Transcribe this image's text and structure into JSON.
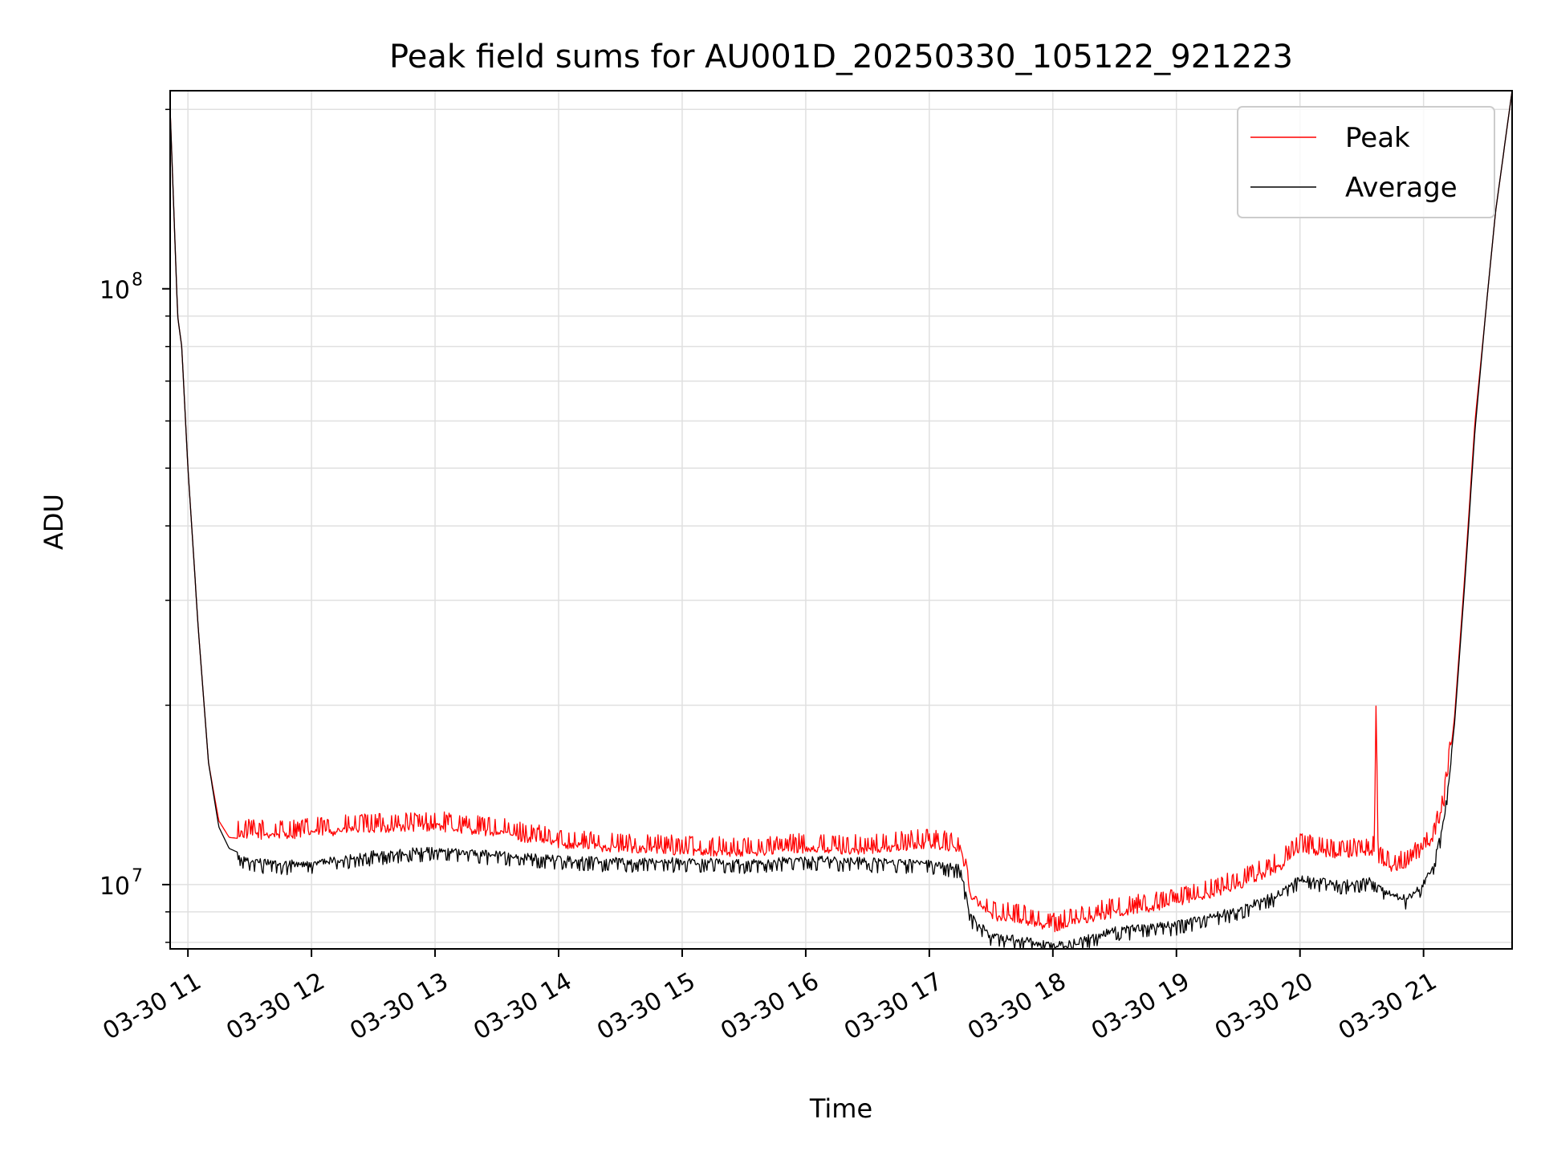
{
  "chart_data": {
    "type": "line",
    "title": "Peak field sums for AU001D_20250330_105122_921223",
    "xlabel": "Time",
    "ylabel": "ADU",
    "x_axis": {
      "kind": "time",
      "range": [
        "2025-03-30 10:51:22",
        "2025-03-30 21:43:00"
      ],
      "ticks": [
        {
          "value": "2025-03-30 11:00",
          "label": "03-30 11"
        },
        {
          "value": "2025-03-30 12:00",
          "label": "03-30 12"
        },
        {
          "value": "2025-03-30 13:00",
          "label": "03-30 13"
        },
        {
          "value": "2025-03-30 14:00",
          "label": "03-30 14"
        },
        {
          "value": "2025-03-30 15:00",
          "label": "03-30 15"
        },
        {
          "value": "2025-03-30 16:00",
          "label": "03-30 16"
        },
        {
          "value": "2025-03-30 17:00",
          "label": "03-30 17"
        },
        {
          "value": "2025-03-30 18:00",
          "label": "03-30 18"
        },
        {
          "value": "2025-03-30 19:00",
          "label": "03-30 19"
        },
        {
          "value": "2025-03-30 20:00",
          "label": "03-30 20"
        },
        {
          "value": "2025-03-30 21:00",
          "label": "03-30 21"
        }
      ],
      "tick_rotation_deg": 30
    },
    "y_axis": {
      "scale": "log",
      "range": [
        7800000,
        215000000
      ],
      "major_ticks": [
        {
          "value": 10000000,
          "base": "10",
          "exp": "7"
        },
        {
          "value": 100000000,
          "base": "10",
          "exp": "8"
        }
      ]
    },
    "grid": true,
    "legend": "top-right",
    "series": [
      {
        "name": "Peak",
        "color": "#ff0000",
        "x": [
          "2025-03-30 10:51:22",
          "2025-03-30 10:55",
          "2025-03-30 10:57",
          "2025-03-30 11:00",
          "2025-03-30 11:05",
          "2025-03-30 11:10",
          "2025-03-30 11:15",
          "2025-03-30 11:20",
          "2025-03-30 11:30",
          "2025-03-30 11:45",
          "2025-03-30 12:00",
          "2025-03-30 12:30",
          "2025-03-30 13:00",
          "2025-03-30 13:30",
          "2025-03-30 14:00",
          "2025-03-30 14:30",
          "2025-03-30 15:00",
          "2025-03-30 15:30",
          "2025-03-30 16:00",
          "2025-03-30 16:30",
          "2025-03-30 17:00",
          "2025-03-30 17:15",
          "2025-03-30 17:20",
          "2025-03-30 17:30",
          "2025-03-30 17:45",
          "2025-03-30 18:00",
          "2025-03-30 18:10",
          "2025-03-30 18:30",
          "2025-03-30 19:00",
          "2025-03-30 19:30",
          "2025-03-30 19:50",
          "2025-03-30 20:00",
          "2025-03-30 20:20",
          "2025-03-30 20:36",
          "2025-03-30 20:37",
          "2025-03-30 20:38",
          "2025-03-30 20:45",
          "2025-03-30 20:52",
          "2025-03-30 21:00",
          "2025-03-30 21:05",
          "2025-03-30 21:10",
          "2025-03-30 21:15",
          "2025-03-30 21:20",
          "2025-03-30 21:25",
          "2025-03-30 21:30",
          "2025-03-30 21:35",
          "2025-03-30 21:43"
        ],
        "values": [
          200000000,
          90000000,
          80000000,
          50000000,
          27000000,
          16000000,
          12800000,
          12000000,
          11900000,
          11900000,
          12000000,
          12200000,
          12300000,
          12000000,
          11500000,
          11300000,
          11200000,
          11100000,
          11300000,
          11200000,
          11500000,
          11300000,
          9500000,
          8700000,
          8600000,
          8300000,
          8500000,
          8800000,
          9100000,
          9800000,
          10500000,
          11300000,
          11000000,
          11200000,
          19500000,
          10800000,
          10500000,
          10600000,
          11200000,
          11800000,
          13500000,
          19000000,
          33000000,
          60000000,
          90000000,
          135000000,
          215000000
        ]
      },
      {
        "name": "Average",
        "color": "#000000",
        "x": [
          "2025-03-30 10:51:22",
          "2025-03-30 10:55",
          "2025-03-30 10:57",
          "2025-03-30 11:00",
          "2025-03-30 11:05",
          "2025-03-30 11:10",
          "2025-03-30 11:15",
          "2025-03-30 11:20",
          "2025-03-30 11:30",
          "2025-03-30 11:45",
          "2025-03-30 12:00",
          "2025-03-30 12:30",
          "2025-03-30 13:00",
          "2025-03-30 13:30",
          "2025-03-30 14:00",
          "2025-03-30 14:30",
          "2025-03-30 15:00",
          "2025-03-30 15:30",
          "2025-03-30 16:00",
          "2025-03-30 16:30",
          "2025-03-30 17:00",
          "2025-03-30 17:15",
          "2025-03-30 17:20",
          "2025-03-30 17:30",
          "2025-03-30 17:45",
          "2025-03-30 18:00",
          "2025-03-30 18:10",
          "2025-03-30 18:30",
          "2025-03-30 19:00",
          "2025-03-30 19:30",
          "2025-03-30 19:50",
          "2025-03-30 20:00",
          "2025-03-30 20:20",
          "2025-03-30 20:36",
          "2025-03-30 20:37",
          "2025-03-30 20:38",
          "2025-03-30 20:45",
          "2025-03-30 20:52",
          "2025-03-30 21:00",
          "2025-03-30 21:05",
          "2025-03-30 21:10",
          "2025-03-30 21:15",
          "2025-03-30 21:20",
          "2025-03-30 21:25",
          "2025-03-30 21:30",
          "2025-03-30 21:35",
          "2025-03-30 21:43"
        ],
        "values": [
          200000000,
          90000000,
          80000000,
          50000000,
          27000000,
          16000000,
          12500000,
          11500000,
          11100000,
          11000000,
          11000000,
          11400000,
          11600000,
          11400000,
          11200000,
          11100000,
          11100000,
          11050000,
          11200000,
          11100000,
          11000000,
          10800000,
          9000000,
          8300000,
          8200000,
          8000000,
          8100000,
          8500000,
          8700000,
          9200000,
          9800000,
          10400000,
          10200000,
          10300000,
          10300000,
          10100000,
          9700000,
          9600000,
          10200000,
          11000000,
          13000000,
          18500000,
          32000000,
          58000000,
          90000000,
          135000000,
          215000000
        ]
      }
    ]
  }
}
